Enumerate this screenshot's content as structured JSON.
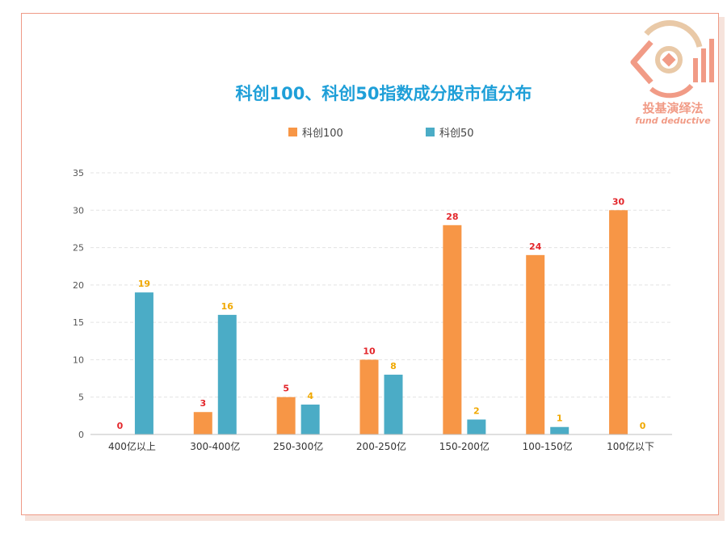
{
  "chart_data": {
    "type": "bar",
    "title": "科创100、科创50指数成分股市值分布",
    "categories": [
      "400亿以上",
      "300-400亿",
      "250-300亿",
      "200-250亿",
      "150-200亿",
      "100-150亿",
      "100亿以下"
    ],
    "series": [
      {
        "name": "科创100",
        "values": [
          0,
          3,
          5,
          10,
          28,
          24,
          30
        ],
        "color": "#f79646",
        "label_color": "#e3262b"
      },
      {
        "name": "科创50",
        "values": [
          19,
          16,
          4,
          8,
          2,
          1,
          0
        ],
        "color": "#4bacc6",
        "label_color": "#f0a800"
      }
    ],
    "ylim": [
      0,
      35
    ],
    "yticks": [
      0,
      5,
      10,
      15,
      20,
      25,
      30,
      35
    ],
    "grid": true,
    "legend": "top-center",
    "xlabel": "",
    "ylabel": ""
  },
  "watermark": {
    "text": "投基演绎法",
    "subtext": "fund deductive",
    "color": "#f19b86"
  }
}
